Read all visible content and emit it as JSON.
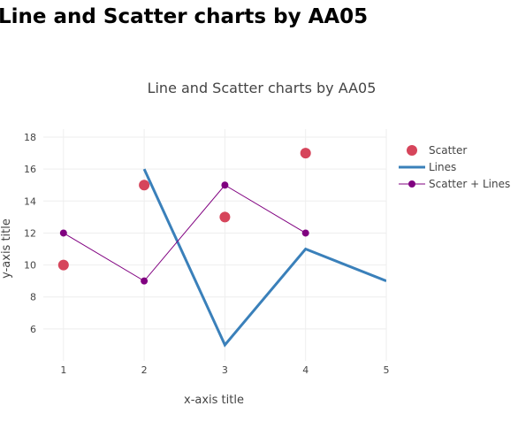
{
  "page": {
    "heading": "Line and Scatter charts by AA05"
  },
  "chart_data": {
    "type": "line",
    "title": "Line and Scatter charts by AA05",
    "xlabel": "x-axis title",
    "ylabel": "y-axis title",
    "xlim": [
      0.75,
      5
    ],
    "ylim": [
      4,
      18.5
    ],
    "xticks": [
      1,
      2,
      3,
      4,
      5
    ],
    "yticks": [
      6,
      8,
      10,
      12,
      14,
      16,
      18
    ],
    "grid": true,
    "legend_position": "top-right",
    "series": [
      {
        "name": "Scatter",
        "mode": "markers",
        "color": "#d6455b",
        "x": [
          1,
          2,
          3,
          4
        ],
        "y": [
          10,
          15,
          13,
          17
        ]
      },
      {
        "name": "Lines",
        "mode": "lines",
        "color": "#3a80ba",
        "x": [
          2,
          3,
          4,
          5
        ],
        "y": [
          16,
          5,
          11,
          9
        ]
      },
      {
        "name": "Scatter + Lines",
        "mode": "lines+markers",
        "color": "#800080",
        "x": [
          1,
          2,
          3,
          4
        ],
        "y": [
          12,
          9,
          15,
          12
        ]
      }
    ]
  }
}
